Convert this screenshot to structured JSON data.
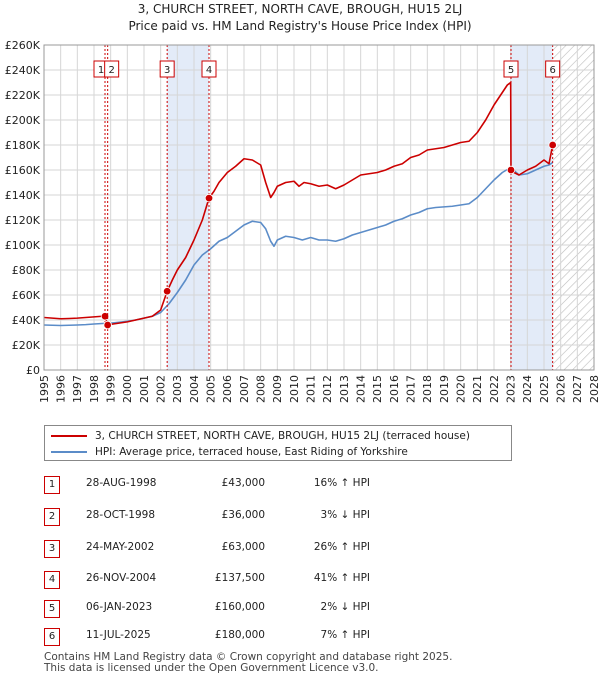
{
  "chart_data": {
    "type": "line",
    "title": "3, CHURCH STREET, NORTH CAVE, BROUGH, HU15 2LJ",
    "subtitle": "Price paid vs. HM Land Registry's House Price Index (HPI)",
    "xlim": [
      1995,
      2028
    ],
    "ylim": [
      0,
      260000
    ],
    "x_ticks": [
      1995,
      1996,
      1997,
      1998,
      1999,
      2000,
      2001,
      2002,
      2003,
      2004,
      2005,
      2006,
      2007,
      2008,
      2009,
      2010,
      2011,
      2012,
      2013,
      2014,
      2015,
      2016,
      2017,
      2018,
      2019,
      2020,
      2021,
      2022,
      2023,
      2024,
      2025,
      2026,
      2027,
      2028
    ],
    "y_ticks": [
      0,
      20000,
      40000,
      60000,
      80000,
      100000,
      120000,
      140000,
      160000,
      180000,
      200000,
      220000,
      240000,
      260000
    ],
    "y_tick_labels": [
      "£0",
      "£20K",
      "£40K",
      "£60K",
      "£80K",
      "£100K",
      "£120K",
      "£140K",
      "£160K",
      "£180K",
      "£200K",
      "£220K",
      "£240K",
      "£260K"
    ],
    "grid": true,
    "shaded_periods": [
      [
        2002.39,
        2004.9
      ],
      [
        2023.02,
        2025.52
      ]
    ],
    "future_hatch_from": 2025.52,
    "series": [
      {
        "name": "3, CHURCH STREET, NORTH CAVE, BROUGH, HU15 2LJ (terraced house)",
        "color": "#cc0000",
        "x": [
          1995.0,
          1995.5,
          1996.0,
          1996.5,
          1997.0,
          1997.5,
          1998.0,
          1998.5,
          1998.66,
          1998.82,
          1999.0,
          1999.5,
          2000.0,
          2000.5,
          2001.0,
          2001.5,
          2002.0,
          2002.39,
          2002.7,
          2003.0,
          2003.5,
          2004.0,
          2004.5,
          2004.9,
          2005.2,
          2005.5,
          2006.0,
          2006.5,
          2007.0,
          2007.5,
          2008.0,
          2008.3,
          2008.6,
          2008.8,
          2009.0,
          2009.5,
          2010.0,
          2010.3,
          2010.6,
          2011.0,
          2011.5,
          2012.0,
          2012.5,
          2013.0,
          2013.5,
          2014.0,
          2014.5,
          2015.0,
          2015.5,
          2016.0,
          2016.5,
          2017.0,
          2017.5,
          2018.0,
          2018.5,
          2019.0,
          2019.5,
          2020.0,
          2020.5,
          2021.0,
          2021.5,
          2022.0,
          2022.5,
          2022.8,
          2023.0,
          2023.02,
          2023.2,
          2023.5,
          2024.0,
          2024.5,
          2025.0,
          2025.3,
          2025.52
        ],
        "values": [
          42000,
          41500,
          41000,
          41200,
          41500,
          42000,
          42500,
          43000,
          43000,
          36000,
          36500,
          37500,
          38500,
          40000,
          41500,
          43000,
          48000,
          63000,
          72000,
          80000,
          90000,
          104000,
          120000,
          137500,
          143000,
          150000,
          158000,
          163000,
          169000,
          168000,
          164000,
          150000,
          138000,
          142000,
          147000,
          150000,
          151000,
          147000,
          150000,
          149000,
          147000,
          148000,
          145000,
          148000,
          152000,
          156000,
          157000,
          158000,
          160000,
          163000,
          165000,
          170000,
          172000,
          176000,
          177000,
          178000,
          180000,
          182000,
          183000,
          190000,
          200000,
          212000,
          222000,
          228000,
          230000,
          160000,
          158000,
          156000,
          160000,
          163000,
          168000,
          165000,
          180000
        ]
      },
      {
        "name": "HPI: Average price, terraced house, East Riding of Yorkshire",
        "color": "#5b8cc8",
        "x": [
          1995.0,
          1995.5,
          1996.0,
          1996.5,
          1997.0,
          1997.5,
          1998.0,
          1998.5,
          1999.0,
          1999.5,
          2000.0,
          2000.5,
          2001.0,
          2001.5,
          2002.0,
          2002.5,
          2003.0,
          2003.5,
          2004.0,
          2004.5,
          2005.0,
          2005.5,
          2006.0,
          2006.5,
          2007.0,
          2007.5,
          2008.0,
          2008.3,
          2008.6,
          2008.8,
          2009.0,
          2009.5,
          2010.0,
          2010.5,
          2011.0,
          2011.5,
          2012.0,
          2012.5,
          2013.0,
          2013.5,
          2014.0,
          2014.5,
          2015.0,
          2015.5,
          2016.0,
          2016.5,
          2017.0,
          2017.5,
          2018.0,
          2018.5,
          2019.0,
          2019.5,
          2020.0,
          2020.5,
          2021.0,
          2021.5,
          2022.0,
          2022.5,
          2023.0,
          2023.5,
          2024.0,
          2024.5,
          2025.0,
          2025.3,
          2025.52
        ],
        "values": [
          36000,
          35800,
          35600,
          35800,
          36000,
          36300,
          36800,
          37200,
          37500,
          38200,
          39000,
          40000,
          41500,
          43000,
          46000,
          53000,
          62000,
          72000,
          84000,
          92000,
          97000,
          103000,
          106000,
          111000,
          116000,
          119000,
          118000,
          113000,
          103000,
          99000,
          104000,
          107000,
          106000,
          104000,
          106000,
          104000,
          104000,
          103000,
          105000,
          108000,
          110000,
          112000,
          114000,
          116000,
          119000,
          121000,
          124000,
          126000,
          129000,
          130000,
          130500,
          131000,
          132000,
          133000,
          138000,
          145000,
          152000,
          158000,
          162000,
          156000,
          157000,
          160000,
          163000,
          164000,
          166000
        ]
      }
    ],
    "markers": [
      {
        "label": "1",
        "x": 1998.66,
        "y": 43000
      },
      {
        "label": "2",
        "x": 1998.82,
        "y": 36000
      },
      {
        "label": "3",
        "x": 2002.39,
        "y": 63000
      },
      {
        "label": "4",
        "x": 2004.9,
        "y": 137500
      },
      {
        "label": "5",
        "x": 2023.02,
        "y": 160000
      },
      {
        "label": "6",
        "x": 2025.52,
        "y": 180000
      }
    ]
  },
  "legend": {
    "items": [
      {
        "label": "3, CHURCH STREET, NORTH CAVE, BROUGH, HU15 2LJ (terraced house)",
        "color": "#cc0000"
      },
      {
        "label": "HPI: Average price, terraced house, East Riding of Yorkshire",
        "color": "#5b8cc8"
      }
    ]
  },
  "transactions": [
    {
      "num": "1",
      "date": "28-AUG-1998",
      "price": "£43,000",
      "hpi": "16% ↑ HPI"
    },
    {
      "num": "2",
      "date": "28-OCT-1998",
      "price": "£36,000",
      "hpi": "3% ↓ HPI"
    },
    {
      "num": "3",
      "date": "24-MAY-2002",
      "price": "£63,000",
      "hpi": "26% ↑ HPI"
    },
    {
      "num": "4",
      "date": "26-NOV-2004",
      "price": "£137,500",
      "hpi": "41% ↑ HPI"
    },
    {
      "num": "5",
      "date": "06-JAN-2023",
      "price": "£160,000",
      "hpi": "2% ↓ HPI"
    },
    {
      "num": "6",
      "date": "11-JUL-2025",
      "price": "£180,000",
      "hpi": "7% ↑ HPI"
    }
  ],
  "footer": {
    "line1": "Contains HM Land Registry data © Crown copyright and database right 2025.",
    "line2": "This data is licensed under the Open Government Licence v3.0."
  },
  "colors": {
    "property": "#cc0000",
    "hpi": "#5b8cc8",
    "shade": "#e3ebf8",
    "grid": "#d6d6d6"
  }
}
